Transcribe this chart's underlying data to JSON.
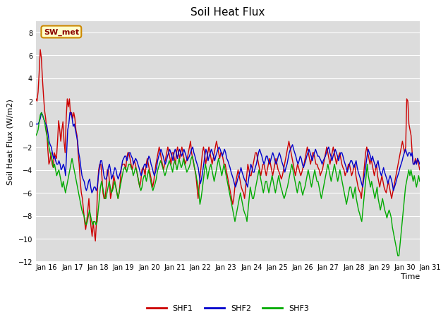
{
  "title": "Soil Heat Flux",
  "ylabel": "Soil Heat Flux (W/m2)",
  "xlabel": "Time",
  "ylim": [
    -12,
    9
  ],
  "yticks": [
    -12,
    -10,
    -8,
    -6,
    -4,
    -2,
    0,
    2,
    4,
    6,
    8
  ],
  "xlim": [
    0,
    360
  ],
  "xtick_labels": [
    "Jan 16",
    "Jan 17",
    "Jan 18",
    "Jan 19",
    "Jan 20",
    "Jan 21",
    "Jan 22",
    "Jan 23",
    "Jan 24",
    "Jan 25",
    "Jan 26",
    "Jan 27",
    "Jan 28",
    "Jan 29",
    "Jan 30",
    "Jan 31"
  ],
  "xtick_positions": [
    0,
    24,
    48,
    72,
    96,
    120,
    144,
    168,
    192,
    216,
    240,
    264,
    288,
    312,
    336,
    360
  ],
  "color_shf1": "#cc0000",
  "color_shf2": "#0000cc",
  "color_shf3": "#00aa00",
  "bg_color": "#dcdcdc",
  "fig_bg": "#ffffff",
  "annotation_text": "SW_met",
  "annotation_bg": "#ffffcc",
  "annotation_border": "#cc8800",
  "legend_labels": [
    "SHF1",
    "SHF2",
    "SHF3"
  ],
  "shf1": [
    2.2,
    2.0,
    2.8,
    4.5,
    6.5,
    5.8,
    4.0,
    2.5,
    1.2,
    0.5,
    -0.5,
    -2.2,
    -3.5,
    -3.2,
    -2.5,
    -3.5,
    -3.8,
    -2.5,
    -2.8,
    -3.0,
    -1.5,
    0.3,
    -0.5,
    -1.5,
    -0.5,
    0.2,
    -1.5,
    -2.5,
    0.5,
    2.2,
    1.5,
    2.2,
    0.8,
    1.0,
    0.5,
    1.0,
    0.5,
    -0.5,
    -1.0,
    -2.5,
    -3.5,
    -5.0,
    -6.0,
    -6.5,
    -7.5,
    -8.5,
    -9.2,
    -8.5,
    -7.5,
    -6.5,
    -8.0,
    -9.0,
    -9.8,
    -8.5,
    -9.5,
    -10.2,
    -8.5,
    -5.5,
    -4.0,
    -3.5,
    -3.5,
    -4.5,
    -6.0,
    -6.5,
    -6.5,
    -5.5,
    -4.0,
    -4.0,
    -5.0,
    -6.5,
    -6.0,
    -5.5,
    -4.5,
    -5.0,
    -5.5,
    -6.0,
    -6.5,
    -6.0,
    -5.0,
    -3.8,
    -3.5,
    -3.5,
    -3.5,
    -4.0,
    -3.0,
    -2.5,
    -2.5,
    -3.0,
    -3.5,
    -4.0,
    -3.5,
    -3.2,
    -3.5,
    -4.0,
    -4.5,
    -5.0,
    -5.5,
    -5.0,
    -4.0,
    -3.8,
    -4.0,
    -4.5,
    -3.5,
    -3.0,
    -3.5,
    -4.0,
    -4.5,
    -5.0,
    -5.5,
    -5.0,
    -4.2,
    -3.5,
    -3.0,
    -2.5,
    -2.0,
    -2.5,
    -3.0,
    -3.5,
    -4.0,
    -3.5,
    -3.0,
    -2.5,
    -2.0,
    -2.5,
    -3.0,
    -3.5,
    -2.5,
    -2.5,
    -3.0,
    -3.5,
    -2.5,
    -2.0,
    -2.5,
    -3.0,
    -2.5,
    -2.0,
    -2.5,
    -3.0,
    -3.5,
    -3.2,
    -3.0,
    -2.5,
    -2.0,
    -1.5,
    -2.5,
    -3.0,
    -3.5,
    -4.0,
    -4.5,
    -5.5,
    -6.5,
    -5.5,
    -4.5,
    -3.5,
    -2.5,
    -2.0,
    -2.5,
    -3.5,
    -3.0,
    -2.5,
    -2.0,
    -2.5,
    -3.0,
    -3.5,
    -3.0,
    -2.5,
    -2.0,
    -1.5,
    -2.0,
    -2.5,
    -3.0,
    -2.5,
    -2.5,
    -3.0,
    -3.5,
    -3.5,
    -4.0,
    -4.5,
    -5.0,
    -5.5,
    -6.0,
    -6.5,
    -7.0,
    -6.5,
    -5.5,
    -5.0,
    -4.5,
    -4.0,
    -4.5,
    -5.0,
    -5.5,
    -5.8,
    -6.0,
    -6.5,
    -5.5,
    -4.5,
    -3.5,
    -4.0,
    -4.5,
    -4.5,
    -4.0,
    -3.5,
    -3.0,
    -2.5,
    -2.5,
    -3.0,
    -3.5,
    -4.0,
    -4.5,
    -4.0,
    -3.5,
    -3.5,
    -4.0,
    -4.5,
    -4.0,
    -3.5,
    -3.0,
    -3.5,
    -4.0,
    -4.5,
    -4.0,
    -3.5,
    -3.0,
    -3.5,
    -4.0,
    -4.2,
    -4.5,
    -4.8,
    -4.5,
    -4.0,
    -3.5,
    -3.0,
    -2.5,
    -2.0,
    -1.5,
    -2.0,
    -2.5,
    -3.0,
    -3.5,
    -4.0,
    -4.5,
    -4.0,
    -3.5,
    -3.8,
    -4.2,
    -4.5,
    -4.2,
    -3.8,
    -3.5,
    -3.0,
    -2.5,
    -2.0,
    -2.5,
    -3.0,
    -3.5,
    -3.0,
    -2.5,
    -2.5,
    -3.0,
    -3.5,
    -3.5,
    -3.8,
    -4.0,
    -4.5,
    -4.2,
    -4.0,
    -3.5,
    -3.0,
    -2.5,
    -2.0,
    -2.5,
    -3.0,
    -3.5,
    -3.0,
    -2.5,
    -2.0,
    -2.5,
    -3.0,
    -3.5,
    -3.0,
    -2.8,
    -2.5,
    -3.0,
    -3.5,
    -3.8,
    -4.0,
    -4.5,
    -4.2,
    -4.0,
    -3.5,
    -3.5,
    -4.0,
    -4.5,
    -4.2,
    -3.8,
    -3.5,
    -4.5,
    -5.0,
    -5.5,
    -5.8,
    -6.0,
    -6.5,
    -5.5,
    -4.5,
    -3.5,
    -2.5,
    -2.0,
    -2.5,
    -3.0,
    -3.5,
    -3.0,
    -3.5,
    -4.0,
    -4.5,
    -4.0,
    -3.5,
    -4.5,
    -5.0,
    -5.5,
    -5.0,
    -4.5,
    -5.0,
    -5.5,
    -5.8,
    -6.0,
    -5.5,
    -5.0,
    -5.5,
    -6.0,
    -6.5,
    -6.0,
    -5.5,
    -5.0,
    -4.5,
    -4.0,
    -3.5,
    -3.0,
    -2.5,
    -2.0,
    -1.5,
    -2.0,
    -2.5,
    -2.0,
    2.2,
    2.0,
    0.0,
    -0.5,
    -1.0,
    -2.5,
    -3.5,
    -3.5,
    -3.0,
    -3.5,
    -3.0,
    -3.5,
    -4.0
  ],
  "shf2": [
    0.0,
    0.0,
    0.0,
    0.2,
    0.5,
    1.0,
    0.8,
    0.5,
    0.2,
    0.0,
    -0.2,
    -0.8,
    -1.5,
    -1.8,
    -2.0,
    -2.5,
    -3.0,
    -2.8,
    -3.2,
    -3.5,
    -3.5,
    -3.2,
    -3.5,
    -4.0,
    -3.8,
    -3.5,
    -3.8,
    -4.5,
    -2.5,
    -0.5,
    0.0,
    1.0,
    1.0,
    0.5,
    -0.2,
    0.0,
    -0.5,
    -1.0,
    -1.5,
    -2.5,
    -3.0,
    -3.8,
    -4.5,
    -4.8,
    -5.0,
    -5.5,
    -5.8,
    -5.5,
    -5.0,
    -4.8,
    -5.5,
    -6.0,
    -5.8,
    -5.5,
    -5.5,
    -5.8,
    -5.5,
    -4.5,
    -3.8,
    -3.2,
    -3.2,
    -3.8,
    -4.5,
    -4.8,
    -4.8,
    -4.5,
    -3.8,
    -3.5,
    -4.0,
    -4.8,
    -4.5,
    -4.2,
    -3.8,
    -4.0,
    -4.5,
    -4.8,
    -4.5,
    -4.2,
    -3.8,
    -3.2,
    -3.0,
    -2.8,
    -2.8,
    -3.2,
    -2.8,
    -2.5,
    -2.5,
    -2.8,
    -3.0,
    -3.5,
    -3.2,
    -3.0,
    -3.2,
    -3.5,
    -3.8,
    -4.2,
    -4.5,
    -4.2,
    -3.8,
    -3.5,
    -3.5,
    -3.8,
    -3.2,
    -2.8,
    -3.0,
    -3.5,
    -3.8,
    -4.2,
    -4.5,
    -4.2,
    -3.8,
    -3.2,
    -2.8,
    -2.5,
    -2.2,
    -2.5,
    -2.8,
    -3.2,
    -3.5,
    -3.2,
    -2.8,
    -2.5,
    -2.2,
    -2.5,
    -2.8,
    -3.2,
    -2.5,
    -2.2,
    -2.5,
    -3.0,
    -2.5,
    -2.2,
    -2.5,
    -2.8,
    -2.5,
    -2.2,
    -2.5,
    -2.8,
    -3.2,
    -3.0,
    -2.8,
    -2.5,
    -2.2,
    -2.0,
    -2.5,
    -2.8,
    -3.2,
    -3.5,
    -3.8,
    -4.5,
    -5.2,
    -4.8,
    -4.2,
    -3.5,
    -2.8,
    -2.2,
    -2.5,
    -3.2,
    -2.8,
    -2.5,
    -2.2,
    -2.5,
    -2.8,
    -3.2,
    -2.8,
    -2.5,
    -2.2,
    -2.0,
    -2.2,
    -2.5,
    -2.8,
    -2.5,
    -2.2,
    -2.5,
    -3.0,
    -3.2,
    -3.5,
    -3.8,
    -4.2,
    -4.5,
    -4.8,
    -5.2,
    -5.5,
    -5.2,
    -4.8,
    -4.5,
    -4.2,
    -3.8,
    -4.2,
    -4.5,
    -4.8,
    -5.0,
    -5.2,
    -5.5,
    -4.8,
    -4.2,
    -3.5,
    -3.8,
    -4.2,
    -4.2,
    -3.8,
    -3.5,
    -3.0,
    -2.5,
    -2.2,
    -2.5,
    -2.8,
    -3.2,
    -3.5,
    -3.2,
    -2.8,
    -2.8,
    -3.2,
    -3.5,
    -3.2,
    -2.8,
    -2.5,
    -2.8,
    -3.2,
    -3.5,
    -3.2,
    -2.8,
    -2.5,
    -2.8,
    -3.2,
    -3.5,
    -3.8,
    -4.2,
    -3.8,
    -3.5,
    -3.0,
    -2.5,
    -2.2,
    -2.0,
    -1.8,
    -2.2,
    -2.5,
    -2.8,
    -3.2,
    -3.5,
    -3.2,
    -2.8,
    -3.0,
    -3.5,
    -3.8,
    -3.5,
    -3.2,
    -2.8,
    -2.5,
    -2.2,
    -2.5,
    -2.8,
    -3.2,
    -2.8,
    -2.5,
    -2.2,
    -2.5,
    -2.8,
    -2.8,
    -3.0,
    -3.2,
    -3.5,
    -3.2,
    -3.0,
    -2.8,
    -2.5,
    -2.2,
    -2.0,
    -2.5,
    -2.8,
    -3.2,
    -2.8,
    -2.5,
    -2.2,
    -2.5,
    -2.8,
    -3.2,
    -2.8,
    -2.5,
    -2.5,
    -2.8,
    -3.2,
    -3.5,
    -3.8,
    -4.2,
    -3.8,
    -3.5,
    -3.2,
    -3.2,
    -3.5,
    -3.8,
    -3.5,
    -3.2,
    -3.8,
    -4.2,
    -4.5,
    -4.8,
    -5.2,
    -5.5,
    -4.8,
    -4.2,
    -3.5,
    -2.8,
    -2.2,
    -2.5,
    -2.8,
    -3.2,
    -2.8,
    -3.2,
    -3.5,
    -3.8,
    -3.5,
    -3.2,
    -3.8,
    -4.2,
    -4.5,
    -4.2,
    -3.8,
    -4.2,
    -4.5,
    -4.8,
    -5.2,
    -4.8,
    -4.5,
    -4.8,
    -5.2,
    -5.8,
    -5.5,
    -5.2,
    -4.8,
    -4.5,
    -4.2,
    -3.8,
    -3.5,
    -3.2,
    -2.8,
    -2.5,
    -2.2,
    -2.5,
    -2.8,
    -2.5,
    -2.5,
    -2.8,
    -2.5,
    -3.5,
    -3.5,
    -3.2,
    -3.5,
    -3.0,
    -3.2,
    -3.5
  ],
  "shf3": [
    -1.0,
    -0.8,
    -0.5,
    0.2,
    0.8,
    1.0,
    0.8,
    0.5,
    0.2,
    -0.5,
    -1.0,
    -1.5,
    -2.0,
    -2.5,
    -2.8,
    -3.2,
    -3.8,
    -3.5,
    -4.0,
    -4.5,
    -4.2,
    -4.0,
    -4.5,
    -5.0,
    -5.5,
    -5.0,
    -5.5,
    -6.0,
    -5.5,
    -5.0,
    -4.5,
    -4.0,
    -3.5,
    -3.0,
    -3.5,
    -4.0,
    -4.5,
    -5.0,
    -5.5,
    -6.0,
    -6.5,
    -7.0,
    -7.5,
    -7.8,
    -8.0,
    -8.5,
    -8.8,
    -8.5,
    -8.0,
    -7.5,
    -8.0,
    -8.5,
    -8.8,
    -8.5,
    -8.5,
    -8.8,
    -8.5,
    -7.5,
    -6.5,
    -5.5,
    -5.0,
    -5.5,
    -6.0,
    -6.5,
    -6.5,
    -6.0,
    -5.5,
    -5.0,
    -5.5,
    -6.0,
    -5.8,
    -5.5,
    -5.0,
    -5.5,
    -6.0,
    -6.5,
    -6.0,
    -5.5,
    -5.0,
    -4.5,
    -4.0,
    -3.8,
    -3.8,
    -4.2,
    -3.8,
    -3.5,
    -3.5,
    -3.8,
    -4.0,
    -4.5,
    -4.2,
    -3.8,
    -4.0,
    -4.5,
    -5.0,
    -5.5,
    -5.8,
    -5.5,
    -4.8,
    -4.5,
    -4.5,
    -5.0,
    -4.5,
    -4.0,
    -4.5,
    -5.0,
    -5.5,
    -5.8,
    -5.5,
    -5.2,
    -4.8,
    -4.2,
    -3.8,
    -3.5,
    -3.2,
    -3.5,
    -3.8,
    -4.2,
    -4.5,
    -4.2,
    -3.8,
    -3.5,
    -3.2,
    -3.5,
    -3.8,
    -4.2,
    -3.5,
    -3.2,
    -3.5,
    -4.0,
    -3.5,
    -3.0,
    -3.5,
    -3.8,
    -3.5,
    -3.0,
    -3.5,
    -3.8,
    -4.2,
    -4.0,
    -3.8,
    -3.5,
    -3.0,
    -2.8,
    -3.2,
    -3.8,
    -4.2,
    -4.8,
    -5.2,
    -6.0,
    -7.0,
    -6.5,
    -5.8,
    -5.0,
    -4.2,
    -3.5,
    -4.0,
    -4.8,
    -4.2,
    -3.8,
    -3.5,
    -4.0,
    -4.5,
    -5.0,
    -4.5,
    -4.0,
    -3.5,
    -3.0,
    -3.5,
    -4.0,
    -4.5,
    -4.0,
    -3.5,
    -4.0,
    -4.5,
    -5.0,
    -5.5,
    -6.0,
    -6.5,
    -7.0,
    -7.5,
    -8.0,
    -8.5,
    -8.0,
    -7.5,
    -7.0,
    -6.5,
    -6.0,
    -6.5,
    -7.0,
    -7.5,
    -7.8,
    -8.0,
    -8.5,
    -7.5,
    -6.5,
    -5.5,
    -6.0,
    -6.5,
    -6.5,
    -6.0,
    -5.5,
    -5.0,
    -4.5,
    -4.0,
    -4.5,
    -5.0,
    -5.5,
    -6.0,
    -5.5,
    -5.0,
    -5.0,
    -5.5,
    -6.0,
    -5.5,
    -5.0,
    -4.5,
    -5.0,
    -5.5,
    -6.0,
    -5.5,
    -5.0,
    -4.5,
    -5.0,
    -5.5,
    -5.8,
    -6.2,
    -6.5,
    -6.2,
    -5.8,
    -5.5,
    -5.0,
    -4.5,
    -4.0,
    -3.5,
    -4.0,
    -4.5,
    -5.0,
    -5.5,
    -6.0,
    -5.5,
    -5.0,
    -5.2,
    -5.8,
    -6.2,
    -5.8,
    -5.5,
    -5.0,
    -4.5,
    -4.0,
    -4.5,
    -5.0,
    -5.5,
    -5.0,
    -4.5,
    -4.0,
    -4.5,
    -5.0,
    -5.0,
    -5.5,
    -6.0,
    -6.5,
    -6.0,
    -5.5,
    -5.0,
    -4.5,
    -4.0,
    -3.5,
    -4.0,
    -4.5,
    -5.0,
    -4.5,
    -4.0,
    -3.5,
    -4.0,
    -4.5,
    -5.0,
    -4.5,
    -4.0,
    -4.5,
    -5.0,
    -5.5,
    -6.0,
    -6.5,
    -7.0,
    -6.5,
    -6.0,
    -5.5,
    -5.5,
    -6.0,
    -6.5,
    -6.0,
    -5.5,
    -6.5,
    -7.0,
    -7.5,
    -7.8,
    -8.2,
    -8.5,
    -7.5,
    -6.5,
    -5.5,
    -4.5,
    -3.5,
    -4.5,
    -5.0,
    -5.5,
    -5.0,
    -5.5,
    -6.0,
    -6.5,
    -6.0,
    -5.5,
    -6.5,
    -7.0,
    -7.5,
    -7.0,
    -6.5,
    -7.0,
    -7.5,
    -7.8,
    -8.2,
    -7.8,
    -7.5,
    -7.8,
    -8.2,
    -9.0,
    -9.5,
    -10.0,
    -10.5,
    -11.0,
    -11.5,
    -11.5,
    -10.5,
    -9.5,
    -8.5,
    -7.5,
    -6.5,
    -5.5,
    -5.0,
    -4.5,
    -4.0,
    -4.5,
    -4.0,
    -4.5,
    -5.0,
    -4.5,
    -5.0,
    -5.5,
    -5.0,
    -4.5,
    -5.0
  ]
}
